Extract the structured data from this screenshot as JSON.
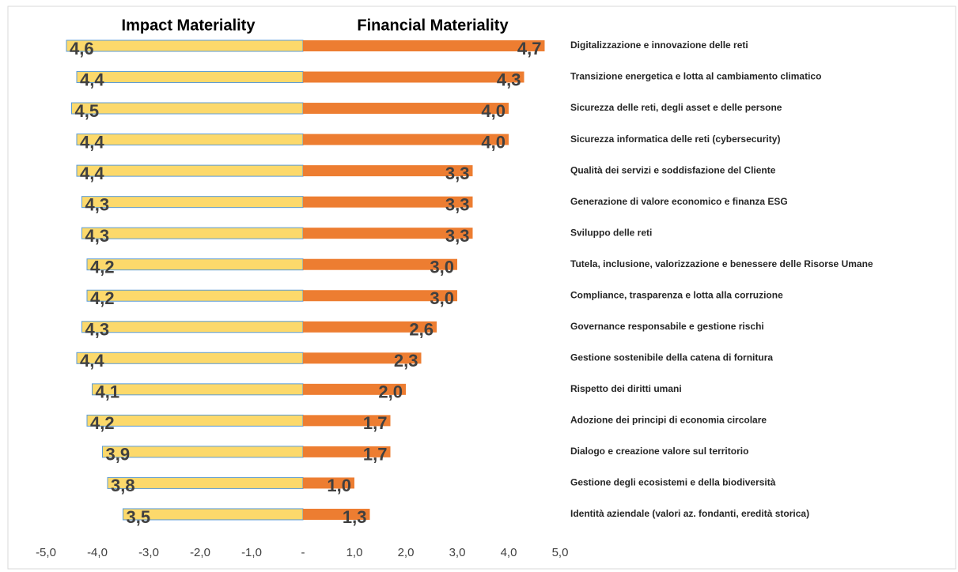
{
  "chart_data": {
    "type": "diverging-bar",
    "categories": [
      "Digitalizzazione e innovazione delle reti",
      "Transizione energetica e lotta al cambiamento climatico",
      "Sicurezza delle reti, degli asset e delle persone",
      "Sicurezza informatica delle reti (cybersecurity)",
      "Qualità dei servizi e soddisfazione del Cliente",
      "Generazione di valore economico e finanza ESG",
      "Sviluppo delle reti",
      "Tutela, inclusione, valorizzazione e benessere delle Risorse Umane",
      "Compliance, trasparenza e lotta alla corruzione",
      "Governance responsabile e gestione rischi",
      "Gestione sostenibile della catena di fornitura",
      "Rispetto dei diritti umani",
      "Adozione dei principi di economia circolare",
      "Dialogo e creazione valore sul territorio",
      "Gestione degli ecosistemi e della biodiversità",
      "Identità aziendale (valori az. fondanti, eredità storica)"
    ],
    "series": [
      {
        "name": "Impact Materiality",
        "color": "#fcd96b",
        "edge": "#5b9bd5",
        "values": [
          -4.6,
          -4.4,
          -4.5,
          -4.4,
          -4.4,
          -4.3,
          -4.3,
          -4.2,
          -4.2,
          -4.3,
          -4.4,
          -4.1,
          -4.2,
          -3.9,
          -3.8,
          -3.5
        ],
        "value_labels": [
          "4,6",
          "4,4",
          "4,5",
          "4,4",
          "4,4",
          "4,3",
          "4,3",
          "4,2",
          "4,2",
          "4,3",
          "4,4",
          "4,1",
          "4,2",
          "3,9",
          "3,8",
          "3,5"
        ]
      },
      {
        "name": "Financial Materiality",
        "color": "#ed7d31",
        "values": [
          4.7,
          4.3,
          4.0,
          4.0,
          3.3,
          3.3,
          3.3,
          3.0,
          3.0,
          2.6,
          2.3,
          2.0,
          1.7,
          1.7,
          1.0,
          1.3
        ],
        "value_labels": [
          "4,7",
          "4,3",
          "4,0",
          "4,0",
          "3,3",
          "3,3",
          "3,3",
          "3,0",
          "3,0",
          "2,6",
          "2,3",
          "2,0",
          "1,7",
          "1,7",
          "1,0",
          "1,3"
        ]
      }
    ],
    "xlim": [
      -5,
      5
    ],
    "xticks": [
      {
        "value": -5,
        "label": "-5,0"
      },
      {
        "value": -4,
        "label": "-4,0"
      },
      {
        "value": -3,
        "label": "-3,0"
      },
      {
        "value": -2,
        "label": "-2,0"
      },
      {
        "value": -1,
        "label": "-1,0"
      },
      {
        "value": 0,
        "label": "-"
      },
      {
        "value": 1,
        "label": "1,0"
      },
      {
        "value": 2,
        "label": "2,0"
      },
      {
        "value": 3,
        "label": "3,0"
      },
      {
        "value": 4,
        "label": "4,0"
      },
      {
        "value": 5,
        "label": "5,0"
      }
    ],
    "grid": false
  }
}
